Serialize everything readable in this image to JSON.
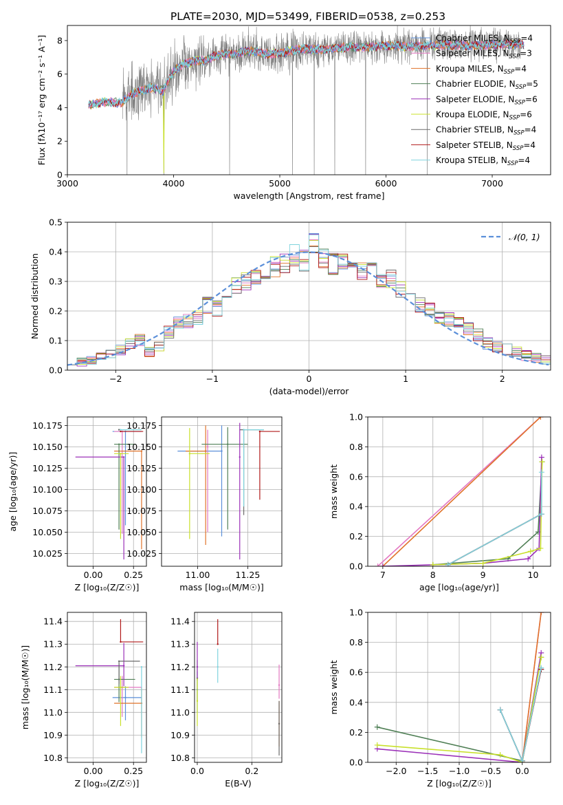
{
  "figure": {
    "title": "PLATE=2030, MJD=53499, FIBERID=0538, z=0.253"
  },
  "colors": {
    "Chabrier MILES": "#5b8fd9",
    "Salpeter MILES": "#e377c2",
    "Kroupa MILES": "#e0732a",
    "Chabrier ELODIE": "#4f7f55",
    "Salpeter ELODIE": "#9b30b8",
    "Kroupa ELODIE": "#c8e02a",
    "Chabrier STELIB": "#6a6a6a",
    "Salpeter STELIB": "#b01818",
    "Kroupa STELIB": "#7fd3dd",
    "data": "#808080"
  },
  "chart_data": [
    {
      "id": "spectrum",
      "type": "line",
      "title": "PLATE=2030, MJD=53499, FIBERID=0538, z=0.253",
      "xlabel": "wavelength [Angstrom, rest frame]",
      "ylabel": "Flux [fλ10⁻¹⁷ erg cm⁻² s⁻¹ A⁻¹]",
      "xlim": [
        3000,
        7550
      ],
      "ylim": [
        0,
        8.9
      ],
      "xticks": [
        3000,
        4000,
        5000,
        6000,
        7000
      ],
      "yticks": [
        0,
        2,
        4,
        6,
        8
      ],
      "grid": false,
      "legend_position": "right",
      "legend": [
        {
          "name": "Chabrier MILES",
          "n_ssp": 4
        },
        {
          "name": "Salpeter MILES",
          "n_ssp": 3
        },
        {
          "name": "Kroupa MILES",
          "n_ssp": 4
        },
        {
          "name": "Chabrier ELODIE",
          "n_ssp": 5
        },
        {
          "name": "Salpeter ELODIE",
          "n_ssp": 6
        },
        {
          "name": "Kroupa ELODIE",
          "n_ssp": 6
        },
        {
          "name": "Chabrier STELIB",
          "n_ssp": 4
        },
        {
          "name": "Salpeter STELIB",
          "n_ssp": 4
        },
        {
          "name": "Kroupa STELIB",
          "n_ssp": 4
        }
      ],
      "data_spectrum": {
        "x_range": [
          3520,
          7270
        ]
      },
      "model_spectrum": {
        "x": [
          3200,
          3300,
          3400,
          3500,
          3600,
          3700,
          3800,
          3900,
          4000,
          4100,
          4200,
          4300,
          4400,
          4500,
          4600,
          4700,
          4800,
          4900,
          5000,
          5200,
          5400,
          5600,
          5800,
          6000,
          6200,
          6400,
          6600,
          6800,
          7000,
          7200,
          7300
        ],
        "y": [
          4.15,
          4.3,
          4.35,
          4.25,
          4.8,
          5.0,
          5.2,
          5.0,
          6.2,
          6.6,
          6.8,
          6.8,
          7.1,
          7.2,
          7.2,
          7.4,
          7.3,
          7.2,
          7.25,
          7.5,
          7.45,
          7.6,
          7.6,
          7.7,
          7.65,
          7.7,
          7.75,
          7.7,
          7.75,
          7.8,
          7.75
        ]
      }
    },
    {
      "id": "residuals",
      "type": "line",
      "xlabel": "(data-model)/error",
      "ylabel": "Normed distribution",
      "xlim": [
        -2.5,
        2.5
      ],
      "ylim": [
        0,
        0.5
      ],
      "xticks": [
        -2,
        -1,
        0,
        1,
        2
      ],
      "yticks": [
        0.0,
        0.1,
        0.2,
        0.3,
        0.4,
        0.5
      ],
      "grid": true,
      "legend_position": "top-right",
      "legend": [
        "𝒩(0, 1)"
      ],
      "bin_width": 0.1,
      "hist_center": {
        "x": [
          -2.45,
          -2.35,
          -2.25,
          -2.15,
          -2.05,
          -1.95,
          -1.85,
          -1.75,
          -1.65,
          -1.55,
          -1.45,
          -1.35,
          -1.25,
          -1.15,
          -1.05,
          -0.95,
          -0.85,
          -0.75,
          -0.65,
          -0.55,
          -0.45,
          -0.35,
          -0.25,
          -0.15,
          -0.05,
          0.05,
          0.15,
          0.25,
          0.35,
          0.45,
          0.55,
          0.65,
          0.75,
          0.85,
          0.95,
          1.05,
          1.15,
          1.25,
          1.35,
          1.45,
          1.55,
          1.65,
          1.75,
          1.85,
          1.95,
          2.05,
          2.15,
          2.25,
          2.35,
          2.45
        ],
        "y": [
          0.025,
          0.025,
          0.03,
          0.045,
          0.06,
          0.07,
          0.09,
          0.1,
          0.06,
          0.08,
          0.13,
          0.16,
          0.165,
          0.18,
          0.22,
          0.21,
          0.27,
          0.29,
          0.3,
          0.31,
          0.33,
          0.35,
          0.36,
          0.39,
          0.37,
          0.43,
          0.38,
          0.36,
          0.36,
          0.35,
          0.33,
          0.34,
          0.3,
          0.31,
          0.27,
          0.24,
          0.22,
          0.2,
          0.18,
          0.17,
          0.16,
          0.14,
          0.12,
          0.09,
          0.08,
          0.07,
          0.06,
          0.05,
          0.04,
          0.035
        ]
      }
    },
    {
      "id": "age-vs-Z",
      "type": "scatter",
      "xlabel": "Z [log₁₀(Z/Z☉)]",
      "ylabel": "age  [log₁₀(age/yr)]",
      "xlim": [
        -0.16,
        0.33
      ],
      "ylim": [
        10.01,
        10.185
      ],
      "xticks": [
        0.0,
        0.25
      ],
      "yticks": [
        10.025,
        10.05,
        10.075,
        10.1,
        10.125,
        10.15,
        10.175
      ],
      "grid": true,
      "errorbars": [
        {
          "series": "Chabrier MILES",
          "x": 0.2,
          "xerr": [
            0.08,
            0.1
          ],
          "y": 10.168,
          "yerr": [
            0.11,
            0.001
          ]
        },
        {
          "series": "Salpeter MILES",
          "x": 0.18,
          "xerr": [
            0.05,
            0.12
          ],
          "y": 10.168,
          "yerr": [
            0.12,
            0.001
          ]
        },
        {
          "series": "Kroupa MILES",
          "x": 0.3,
          "xerr": [
            0.17,
            0.0
          ],
          "y": 10.145,
          "yerr": [
            0.115,
            0.0
          ]
        },
        {
          "series": "Chabrier ELODIE",
          "x": 0.16,
          "xerr": [
            0.03,
            0.1
          ],
          "y": 10.153,
          "yerr": [
            0.1,
            0.0
          ]
        },
        {
          "series": "Salpeter ELODIE",
          "x": 0.19,
          "xerr": [
            0.3,
            0.0
          ],
          "y": 10.138,
          "yerr": [
            0.12,
            0.0
          ]
        },
        {
          "series": "Kroupa ELODIE",
          "x": 0.17,
          "xerr": [
            0.04,
            0.05
          ],
          "y": 10.142,
          "yerr": [
            0.1,
            0.0
          ]
        },
        {
          "series": "Chabrier STELIB",
          "x": 0.16,
          "xerr": [
            0.0,
            0.0
          ],
          "y": 10.17,
          "yerr": [
            0.0,
            0.0
          ]
        },
        {
          "series": "Salpeter STELIB",
          "x": 0.17,
          "xerr": [
            0.0,
            0.14
          ],
          "y": 10.168,
          "yerr": [
            0.0,
            0.0
          ]
        },
        {
          "series": "Kroupa STELIB",
          "x": 0.17,
          "xerr": [
            0.0,
            0.13
          ],
          "y": 10.17,
          "yerr": [
            0.0,
            0.0
          ]
        }
      ]
    },
    {
      "id": "age-vs-mass",
      "type": "scatter",
      "xlabel": "mass [log₁₀(M/M☉)]",
      "ylabel": "",
      "xlim": [
        10.82,
        11.42
      ],
      "ylim": [
        10.01,
        10.185
      ],
      "xticks": [
        11.0,
        11.25
      ],
      "yticks": [
        10.025,
        10.05,
        10.075,
        10.1,
        10.125,
        10.15,
        10.175
      ],
      "grid": true,
      "errorbars": [
        {
          "series": "Chabrier MILES",
          "x": 11.12,
          "xerr": [
            0.22,
            0.0
          ],
          "y": 10.145,
          "yerr": [
            0.1,
            0.03
          ]
        },
        {
          "series": "Salpeter MILES",
          "x": 11.05,
          "xerr": [
            0.0,
            0.0
          ],
          "y": 10.15,
          "yerr": [
            0.1,
            0.02
          ]
        },
        {
          "series": "Kroupa MILES",
          "x": 11.04,
          "xerr": [
            0.1,
            0.0
          ],
          "y": 10.145,
          "yerr": [
            0.11,
            0.03
          ]
        },
        {
          "series": "Chabrier ELODIE",
          "x": 11.15,
          "xerr": [
            0.13,
            0.1
          ],
          "y": 10.153,
          "yerr": [
            0.1,
            0.02
          ]
        },
        {
          "series": "Salpeter ELODIE",
          "x": 11.21,
          "xerr": [
            0.0,
            0.0
          ],
          "y": 10.138,
          "yerr": [
            0.12,
            0.04
          ]
        },
        {
          "series": "Kroupa ELODIE",
          "x": 10.96,
          "xerr": [
            0.0,
            0.1
          ],
          "y": 10.142,
          "yerr": [
            0.1,
            0.03
          ]
        },
        {
          "series": "Chabrier STELIB",
          "x": 11.23,
          "xerr": [
            0.02,
            0.1
          ],
          "y": 10.17,
          "yerr": [
            0.1,
            0.0
          ]
        },
        {
          "series": "Salpeter STELIB",
          "x": 11.31,
          "xerr": [
            0.0,
            0.1
          ],
          "y": 10.168,
          "yerr": [
            0.08,
            0.0
          ]
        },
        {
          "series": "Kroupa STELIB",
          "x": 11.23,
          "xerr": [
            0.0,
            0.1
          ],
          "y": 10.17,
          "yerr": [
            0.09,
            0.0
          ]
        }
      ]
    },
    {
      "id": "weight-vs-age",
      "type": "line",
      "xlabel": "age  [log₁₀(age/yr)]",
      "ylabel": "mass weight",
      "xlim": [
        6.7,
        10.35
      ],
      "ylim": [
        0,
        1.0
      ],
      "xticks": [
        7,
        8,
        9,
        10
      ],
      "yticks": [
        0.0,
        0.2,
        0.4,
        0.6,
        0.8,
        1.0
      ],
      "grid": true,
      "series": [
        {
          "name": "Chabrier MILES",
          "x": [
            8.3,
            10.17
          ],
          "y": [
            0.01,
            0.35
          ]
        },
        {
          "name": "Salpeter MILES",
          "x": [
            6.9,
            10.15
          ],
          "y": [
            0.0,
            1.0
          ]
        },
        {
          "name": "Kroupa MILES",
          "x": [
            7.0,
            10.15
          ],
          "y": [
            0.0,
            1.0
          ]
        },
        {
          "name": "Chabrier ELODIE",
          "x": [
            8.0,
            9.5,
            10.1,
            10.18
          ],
          "y": [
            0.01,
            0.05,
            0.23,
            0.7
          ]
        },
        {
          "name": "Salpeter ELODIE",
          "x": [
            7.0,
            9.0,
            9.9,
            10.12,
            10.17
          ],
          "y": [
            0.0,
            0.02,
            0.05,
            0.12,
            0.73
          ]
        },
        {
          "name": "Kroupa ELODIE",
          "x": [
            8.0,
            9.0,
            9.95,
            10.15,
            10.18
          ],
          "y": [
            0.01,
            0.02,
            0.1,
            0.12,
            0.7
          ]
        },
        {
          "name": "Chabrier STELIB",
          "x": [
            8.3,
            10.17
          ],
          "y": [
            0.01,
            0.35
          ]
        },
        {
          "name": "Salpeter STELIB",
          "x": [
            8.3,
            10.17
          ],
          "y": [
            0.01,
            0.35
          ]
        },
        {
          "name": "Kroupa STELIB",
          "x": [
            8.3,
            10.17,
            10.17
          ],
          "y": [
            0.01,
            0.35,
            0.63
          ]
        }
      ]
    },
    {
      "id": "mass-vs-Z",
      "type": "scatter",
      "xlabel": "Z [log₁₀(Z/Z☉)]",
      "ylabel": "mass [log₁₀(M/M☉)]",
      "xlim": [
        -0.16,
        0.33
      ],
      "ylim": [
        10.78,
        11.44
      ],
      "xticks": [
        0.0,
        0.25
      ],
      "yticks": [
        10.8,
        10.9,
        11.0,
        11.1,
        11.2,
        11.3,
        11.4
      ],
      "grid": true,
      "errorbars": [
        {
          "series": "Chabrier MILES",
          "x": 0.2,
          "xerr": [
            0.08,
            0.1
          ],
          "y": 11.065,
          "yerr": [
            0.1,
            0.05
          ]
        },
        {
          "series": "Salpeter MILES",
          "x": 0.18,
          "xerr": [
            0.05,
            0.12
          ],
          "y": 11.11,
          "yerr": [
            0.13,
            0.05
          ]
        },
        {
          "series": "Kroupa MILES",
          "x": 0.3,
          "xerr": [
            0.17,
            0.0
          ],
          "y": 11.04,
          "yerr": [
            0.15,
            0.07
          ]
        },
        {
          "series": "Chabrier ELODIE",
          "x": 0.16,
          "xerr": [
            0.03,
            0.1
          ],
          "y": 11.145,
          "yerr": [
            0.1,
            0.07
          ]
        },
        {
          "series": "Salpeter ELODIE",
          "x": 0.19,
          "xerr": [
            0.3,
            0.0
          ],
          "y": 11.205,
          "yerr": [
            0.09,
            0.1
          ]
        },
        {
          "series": "Kroupa ELODIE",
          "x": 0.17,
          "xerr": [
            0.04,
            0.05
          ],
          "y": 11.11,
          "yerr": [
            0.17,
            0.05
          ]
        },
        {
          "series": "Chabrier STELIB",
          "x": 0.16,
          "xerr": [
            0.0,
            0.13
          ],
          "y": 11.225,
          "yerr": [
            0.1,
            0.0
          ]
        },
        {
          "series": "Salpeter STELIB",
          "x": 0.17,
          "xerr": [
            0.0,
            0.14
          ],
          "y": 11.31,
          "yerr": [
            0.0,
            0.1
          ]
        },
        {
          "series": "Kroupa STELIB",
          "x": 0.3,
          "xerr": [
            0.0,
            0.0
          ],
          "y": 11.2,
          "yerr": [
            0.38,
            0.0
          ]
        }
      ]
    },
    {
      "id": "mass-vs-ebv",
      "type": "scatter",
      "xlabel": "E(B-V)",
      "ylabel": "",
      "xlim": [
        -0.01,
        0.31
      ],
      "ylim": [
        10.78,
        11.44
      ],
      "xticks": [
        0.0,
        0.2
      ],
      "yticks": [
        10.8,
        10.9,
        11.0,
        11.1,
        11.2,
        11.3,
        11.4
      ],
      "grid": true,
      "errorbars": [
        {
          "series": "Chabrier MILES",
          "x": 0.0,
          "y": 11.1,
          "yerr": [
            0.1,
            0.08
          ]
        },
        {
          "series": "Salpeter MILES",
          "x": 0.3,
          "y": 11.12,
          "yerr": [
            0.06,
            0.09
          ]
        },
        {
          "series": "Kroupa MILES",
          "x": 0.3,
          "y": 10.95,
          "yerr": [
            0.1,
            0.1
          ]
        },
        {
          "series": "Chabrier ELODIE",
          "x": 0.0,
          "y": 11.15,
          "yerr": [
            0.1,
            0.08
          ]
        },
        {
          "series": "Salpeter ELODIE",
          "x": 0.0,
          "y": 11.2,
          "yerr": [
            0.06,
            0.11
          ]
        },
        {
          "series": "Kroupa ELODIE",
          "x": 0.0,
          "y": 11.05,
          "yerr": [
            0.11,
            0.1
          ]
        },
        {
          "series": "Chabrier STELIB",
          "x": 0.3,
          "y": 10.95,
          "yerr": [
            0.14,
            0.1
          ]
        },
        {
          "series": "Salpeter STELIB",
          "x": 0.075,
          "y": 11.3,
          "yerr": [
            0.0,
            0.11
          ]
        },
        {
          "series": "Kroupa STELIB",
          "x": 0.075,
          "y": 11.2,
          "yerr": [
            0.07,
            0.08
          ]
        }
      ]
    },
    {
      "id": "weight-vs-Z",
      "type": "line",
      "xlabel": "Z [log₁₀(Z/Z☉)]",
      "ylabel": "mass weight",
      "xlim": [
        -2.45,
        0.45
      ],
      "ylim": [
        0,
        1.0
      ],
      "xticks": [
        -2.0,
        -1.5,
        -1.0,
        -0.5,
        0.0
      ],
      "yticks": [
        0.0,
        0.2,
        0.4,
        0.6,
        0.8,
        1.0
      ],
      "grid": true,
      "series": [
        {
          "name": "Chabrier MILES",
          "x": [
            -0.35,
            0.0,
            0.3
          ],
          "y": [
            0.35,
            0.01,
            0.62
          ]
        },
        {
          "name": "Salpeter MILES",
          "x": [
            0.0,
            0.3
          ],
          "y": [
            0.0,
            1.0
          ]
        },
        {
          "name": "Kroupa MILES",
          "x": [
            0.0,
            0.3
          ],
          "y": [
            0.0,
            1.0
          ]
        },
        {
          "name": "Chabrier ELODIE",
          "x": [
            -2.3,
            0.0,
            0.3
          ],
          "y": [
            0.235,
            0.01,
            0.7
          ]
        },
        {
          "name": "Salpeter ELODIE",
          "x": [
            -2.3,
            0.0,
            0.3
          ],
          "y": [
            0.09,
            0.0,
            0.73
          ]
        },
        {
          "name": "Kroupa ELODIE",
          "x": [
            -2.3,
            -0.35,
            0.0,
            0.3
          ],
          "y": [
            0.115,
            0.05,
            0.0,
            0.7
          ]
        },
        {
          "name": "Chabrier STELIB",
          "x": [
            -0.35,
            0.0,
            0.3
          ],
          "y": [
            0.35,
            0.01,
            0.62
          ]
        },
        {
          "name": "Salpeter STELIB",
          "x": [
            -0.35,
            0.0,
            0.3
          ],
          "y": [
            0.35,
            0.01,
            0.62
          ]
        },
        {
          "name": "Kroupa STELIB",
          "x": [
            -0.35,
            0.0,
            0.3
          ],
          "y": [
            0.35,
            0.01,
            0.63
          ]
        }
      ]
    }
  ]
}
